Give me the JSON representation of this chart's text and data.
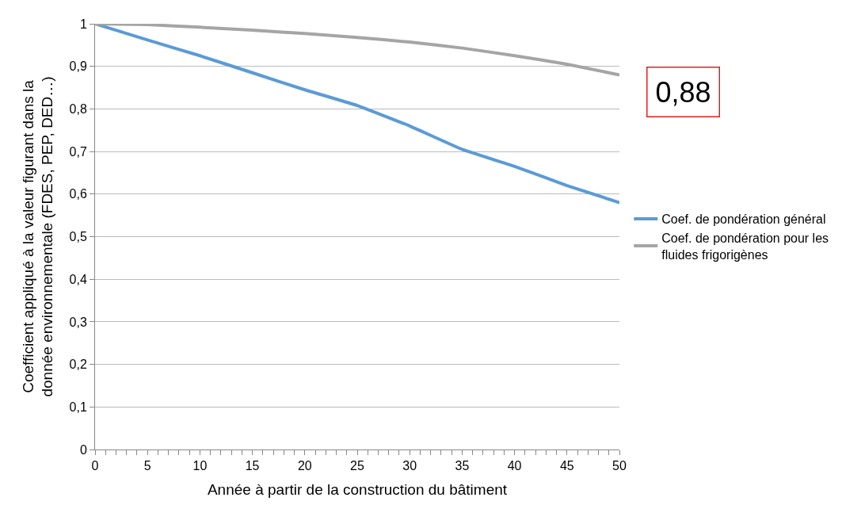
{
  "chart_data": {
    "type": "line",
    "xlabel": "Année à partir de la construction du bâtiment",
    "ylabel": "Coefficient appliqué à la valeur figurant dans la\ndonnée environnementale (FDES, PEP, DED…)",
    "x": [
      0,
      5,
      10,
      15,
      20,
      25,
      30,
      35,
      40,
      45,
      50
    ],
    "series": [
      {
        "name": "Coef. de pondération général",
        "color": "#5b9bd5",
        "values": [
          1,
          0.962,
          0.925,
          0.885,
          0.845,
          0.808,
          0.76,
          0.705,
          0.665,
          0.62,
          0.58
        ]
      },
      {
        "name": "Coef. de pondération pour les\nfluides frigorigènes",
        "color": "#a5a5a5",
        "values": [
          1,
          0.998,
          0.992,
          0.985,
          0.977,
          0.968,
          0.957,
          0.943,
          0.925,
          0.905,
          0.88
        ]
      }
    ],
    "xlim": [
      0,
      50
    ],
    "xticks": [
      0,
      {
        "value": 1,
        "label": null
      },
      {
        "value": 2,
        "label": null
      },
      {
        "value": 3,
        "label": null
      },
      {
        "value": 4,
        "label": null
      },
      5,
      {
        "value": 6,
        "label": null
      },
      {
        "value": 7,
        "label": null
      },
      {
        "value": 8,
        "label": null
      },
      {
        "value": 9,
        "label": null
      },
      10,
      {
        "value": 11,
        "label": null
      },
      {
        "value": 12,
        "label": null
      },
      {
        "value": 13,
        "label": null
      },
      {
        "value": 14,
        "label": null
      },
      15,
      {
        "value": 16,
        "label": null
      },
      {
        "value": 17,
        "label": null
      },
      {
        "value": 18,
        "label": null
      },
      {
        "value": 19,
        "label": null
      },
      20,
      {
        "value": 21,
        "label": null
      },
      {
        "value": 22,
        "label": null
      },
      {
        "value": 23,
        "label": null
      },
      {
        "value": 24,
        "label": null
      },
      25,
      {
        "value": 26,
        "label": null
      },
      {
        "value": 27,
        "label": null
      },
      {
        "value": 28,
        "label": null
      },
      {
        "value": 29,
        "label": null
      },
      30,
      {
        "value": 31,
        "label": null
      },
      {
        "value": 32,
        "label": null
      },
      {
        "value": 33,
        "label": null
      },
      {
        "value": 34,
        "label": null
      },
      35,
      {
        "value": 36,
        "label": null
      },
      {
        "value": 37,
        "label": null
      },
      {
        "value": 38,
        "label": null
      },
      {
        "value": 39,
        "label": null
      },
      40,
      {
        "value": 41,
        "label": null
      },
      {
        "value": 42,
        "label": null
      },
      {
        "value": 43,
        "label": null
      },
      {
        "value": 44,
        "label": null
      },
      45,
      {
        "value": 46,
        "label": null
      },
      {
        "value": 47,
        "label": null
      },
      {
        "value": 48,
        "label": null
      },
      {
        "value": 49,
        "label": null
      },
      50
    ],
    "ylim": [
      0,
      1
    ],
    "yticks": [
      0,
      {
        "value": 0.1,
        "label": "0,1"
      },
      {
        "value": 0.2,
        "label": "0,2"
      },
      {
        "value": 0.3,
        "label": "0,3"
      },
      {
        "value": 0.4,
        "label": "0,4"
      },
      {
        "value": 0.5,
        "label": "0,5"
      },
      {
        "value": 0.6,
        "label": "0,6"
      },
      {
        "value": 0.7,
        "label": "0,7"
      },
      {
        "value": 0.8,
        "label": "0,8"
      },
      {
        "value": 0.9,
        "label": "0,9"
      },
      1
    ],
    "grid": "y",
    "legend": "right",
    "marker": "none",
    "line_style": "solid",
    "annotations": [
      {
        "text": "0,88",
        "x": 50,
        "y": 0.88
      }
    ]
  }
}
